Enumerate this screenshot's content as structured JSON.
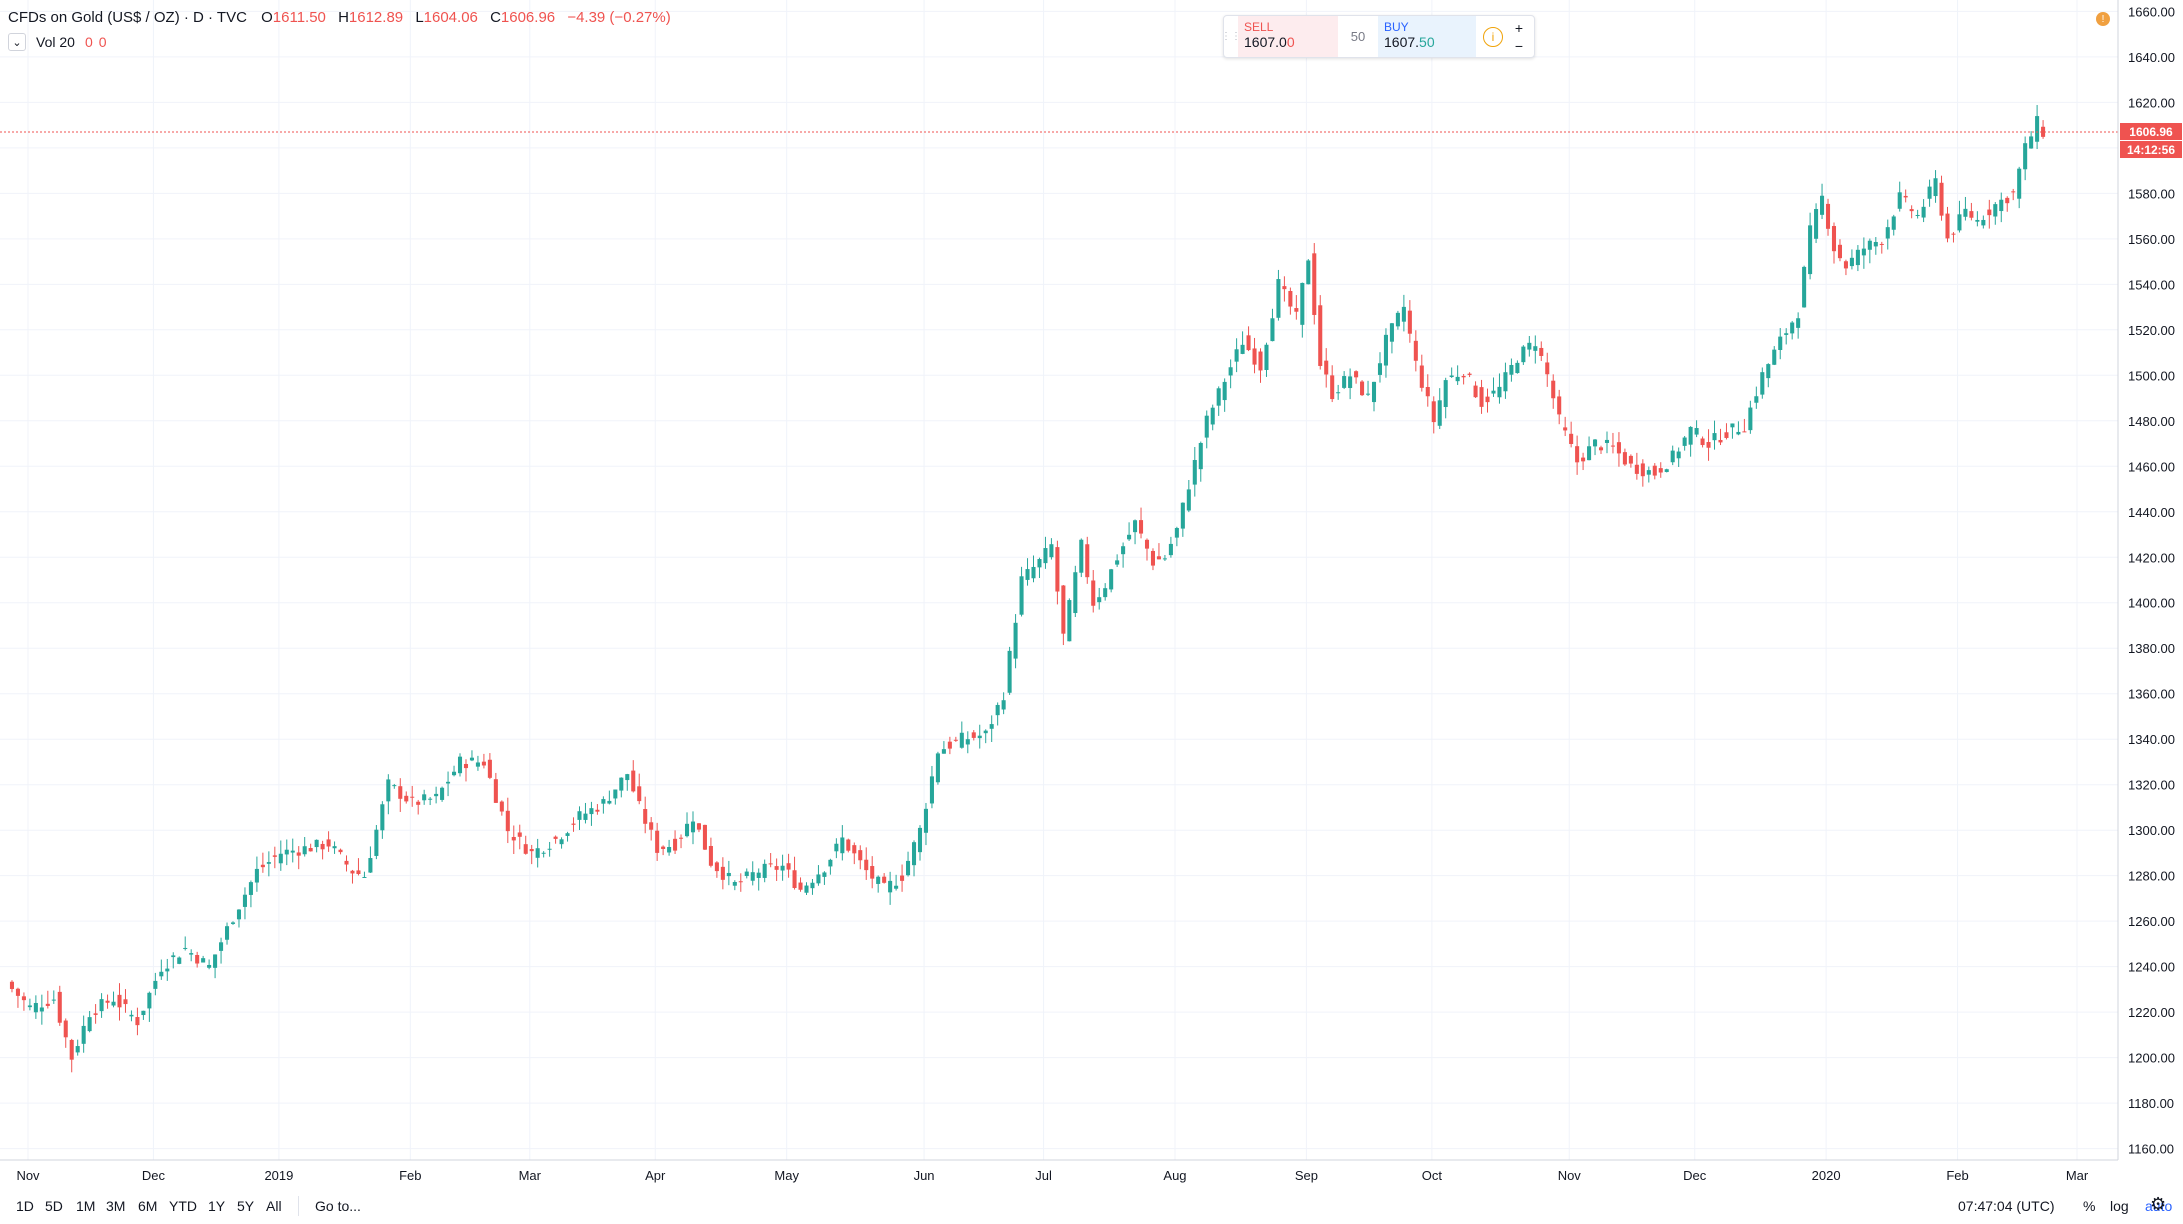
{
  "header": {
    "symbol": "CFDs on Gold (US$ / OZ) · D · TVC",
    "open_label": "O",
    "open": "1611.50",
    "high_label": "H",
    "high": "1612.89",
    "low_label": "L",
    "low": "1604.06",
    "close_label": "C",
    "close": "1606.96",
    "change": "−4.39 (−0.27%)"
  },
  "volume": {
    "label": "Vol 20",
    "v1": "0",
    "v2": "0"
  },
  "trade": {
    "sell_label": "SELL",
    "sell_main": "1607.0",
    "sell_tail": "0",
    "quantity": "50",
    "buy_label": "BUY",
    "buy_main": "1607.",
    "buy_tail": "50",
    "info_icon": "i",
    "plus": "+",
    "minus": "−"
  },
  "alert_icon": "!",
  "price_badge": "1606.96",
  "countdown_badge": "14:12:56",
  "timeframes": [
    "1D",
    "5D",
    "1M",
    "3M",
    "6M",
    "YTD",
    "1Y",
    "5Y",
    "All"
  ],
  "goto_label": "Go to...",
  "clock": "07:47:04 (UTC)",
  "options": {
    "percent": "%",
    "log": "log",
    "auto": "auto"
  },
  "colors": {
    "up": "#26a69a",
    "down": "#ef5350",
    "grid": "#f0f3fa",
    "accent": "#2962ff"
  },
  "chart_data": {
    "type": "candlestick",
    "title": "CFDs on Gold (US$ / OZ) · D · TVC",
    "ylim": [
      1155,
      1665
    ],
    "y_ticks": [
      1160,
      1180,
      1200,
      1220,
      1240,
      1260,
      1280,
      1300,
      1320,
      1340,
      1360,
      1380,
      1400,
      1420,
      1440,
      1460,
      1480,
      1500,
      1520,
      1540,
      1560,
      1580,
      1600,
      1620,
      1640,
      1660
    ],
    "x_ticks": [
      {
        "label": "Nov",
        "i": 0
      },
      {
        "label": "Dec",
        "i": 21
      },
      {
        "label": "2019",
        "i": 42
      },
      {
        "label": "Feb",
        "i": 64
      },
      {
        "label": "Mar",
        "i": 84
      },
      {
        "label": "Apr",
        "i": 105
      },
      {
        "label": "May",
        "i": 127
      },
      {
        "label": "Jun",
        "i": 150
      },
      {
        "label": "Jul",
        "i": 170
      },
      {
        "label": "Aug",
        "i": 192
      },
      {
        "label": "Sep",
        "i": 214
      },
      {
        "label": "Oct",
        "i": 235
      },
      {
        "label": "Nov",
        "i": 258
      },
      {
        "label": "Dec",
        "i": 279
      },
      {
        "label": "2020",
        "i": 301
      },
      {
        "label": "Feb",
        "i": 323
      },
      {
        "label": "Mar",
        "i": 343
      }
    ],
    "x_count": 345,
    "last_price": 1606.96,
    "anchors": [
      [
        0,
        1233
      ],
      [
        4,
        1222
      ],
      [
        8,
        1226
      ],
      [
        11,
        1200
      ],
      [
        14,
        1220
      ],
      [
        18,
        1226
      ],
      [
        22,
        1216
      ],
      [
        26,
        1240
      ],
      [
        30,
        1248
      ],
      [
        34,
        1240
      ],
      [
        38,
        1262
      ],
      [
        42,
        1282
      ],
      [
        46,
        1290
      ],
      [
        50,
        1292
      ],
      [
        54,
        1294
      ],
      [
        58,
        1282
      ],
      [
        60,
        1280
      ],
      [
        64,
        1320
      ],
      [
        68,
        1312
      ],
      [
        72,
        1314
      ],
      [
        76,
        1330
      ],
      [
        80,
        1330
      ],
      [
        84,
        1300
      ],
      [
        88,
        1290
      ],
      [
        92,
        1296
      ],
      [
        96,
        1306
      ],
      [
        100,
        1312
      ],
      [
        104,
        1325
      ],
      [
        106,
        1310
      ],
      [
        109,
        1292
      ],
      [
        112,
        1294
      ],
      [
        115,
        1306
      ],
      [
        118,
        1286
      ],
      [
        122,
        1276
      ],
      [
        126,
        1282
      ],
      [
        130,
        1284
      ],
      [
        133,
        1274
      ],
      [
        137,
        1284
      ],
      [
        140,
        1296
      ],
      [
        144,
        1282
      ],
      [
        147,
        1274
      ],
      [
        150,
        1280
      ],
      [
        153,
        1300
      ],
      [
        156,
        1335
      ],
      [
        160,
        1340
      ],
      [
        164,
        1342
      ],
      [
        167,
        1360
      ],
      [
        170,
        1410
      ],
      [
        173,
        1418
      ],
      [
        175,
        1425
      ],
      [
        177,
        1385
      ],
      [
        180,
        1425
      ],
      [
        182,
        1400
      ],
      [
        184,
        1408
      ],
      [
        186,
        1420
      ],
      [
        189,
        1435
      ],
      [
        192,
        1418
      ],
      [
        194,
        1420
      ],
      [
        196,
        1432
      ],
      [
        198,
        1452
      ],
      [
        201,
        1480
      ],
      [
        204,
        1498
      ],
      [
        207,
        1515
      ],
      [
        210,
        1504
      ],
      [
        213,
        1540
      ],
      [
        216,
        1525
      ],
      [
        218,
        1552
      ],
      [
        220,
        1505
      ],
      [
        222,
        1492
      ],
      [
        225,
        1500
      ],
      [
        228,
        1490
      ],
      [
        231,
        1515
      ],
      [
        234,
        1530
      ],
      [
        236,
        1505
      ],
      [
        239,
        1480
      ],
      [
        241,
        1498
      ],
      [
        244,
        1502
      ],
      [
        247,
        1488
      ],
      [
        250,
        1494
      ],
      [
        253,
        1508
      ],
      [
        256,
        1515
      ],
      [
        258,
        1500
      ],
      [
        260,
        1480
      ],
      [
        263,
        1462
      ],
      [
        266,
        1470
      ],
      [
        269,
        1468
      ],
      [
        272,
        1460
      ],
      [
        276,
        1457
      ],
      [
        279,
        1464
      ],
      [
        282,
        1476
      ],
      [
        285,
        1470
      ],
      [
        288,
        1475
      ],
      [
        291,
        1478
      ],
      [
        294,
        1500
      ],
      [
        297,
        1515
      ],
      [
        300,
        1528
      ],
      [
        302,
        1563
      ],
      [
        304,
        1578
      ],
      [
        306,
        1556
      ],
      [
        308,
        1548
      ],
      [
        311,
        1556
      ],
      [
        314,
        1560
      ],
      [
        317,
        1578
      ],
      [
        320,
        1570
      ],
      [
        323,
        1585
      ],
      [
        325,
        1560
      ],
      [
        328,
        1572
      ],
      [
        330,
        1568
      ],
      [
        333,
        1575
      ],
      [
        336,
        1580
      ],
      [
        338,
        1600
      ],
      [
        340,
        1611
      ],
      [
        341,
        1606.96
      ]
    ]
  }
}
